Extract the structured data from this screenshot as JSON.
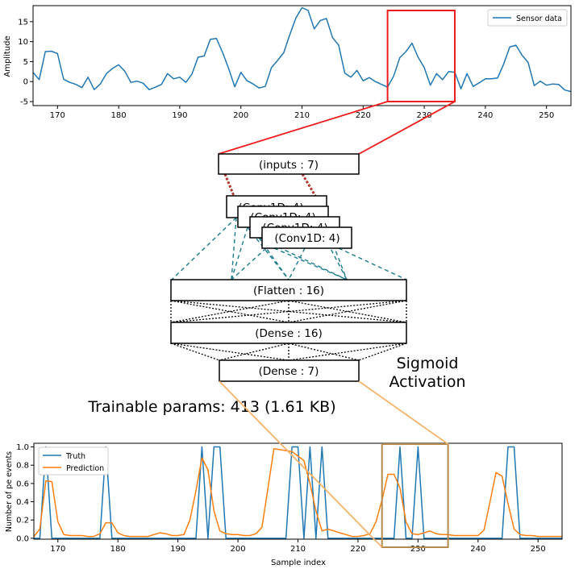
{
  "colors": {
    "sensor": "#1f77b4",
    "truth": "#1f77b4",
    "prediction": "#ff7f0e",
    "zoom_red": "#ee1c1c",
    "zoom_orange": "#f5b36b",
    "zoom_brown": "#b5894c",
    "conv_link": "#1a7a8c",
    "input_link": "#b03a2e"
  },
  "network": {
    "input": "(inputs : 7)",
    "conv": [
      "(Conv1D: 4)",
      "(Conv1D: 4)",
      "(Conv1D: 4)",
      "(Conv1D: 4)"
    ],
    "flatten": "(Flatten : 16)",
    "dense1": "(Dense : 16)",
    "dense2": "(Dense : 7)",
    "activation_line1": "Sigmoid",
    "activation_line2": "Activation",
    "params": "Trainable params: 413 (1.61 KB)"
  },
  "chart_data": [
    {
      "type": "line",
      "title": "",
      "xlabel": "",
      "ylabel": "Amplitude",
      "xlim": [
        166,
        254
      ],
      "ylim": [
        -6,
        19
      ],
      "xticks": [
        170,
        180,
        190,
        200,
        210,
        220,
        230,
        240,
        250
      ],
      "yticks": [
        -5,
        0,
        5,
        10,
        15
      ],
      "legend": "top-right",
      "zoom_window": [
        224,
        235
      ],
      "series": [
        {
          "name": "Sensor data",
          "x": [
            166,
            167,
            168,
            169,
            170,
            171,
            172,
            173,
            174,
            175,
            176,
            177,
            178,
            179,
            180,
            181,
            182,
            183,
            184,
            185,
            186,
            187,
            188,
            189,
            190,
            191,
            192,
            193,
            194,
            195,
            196,
            197,
            198,
            199,
            200,
            201,
            202,
            203,
            204,
            205,
            206,
            207,
            208,
            209,
            210,
            211,
            212,
            213,
            214,
            215,
            216,
            217,
            218,
            219,
            220,
            221,
            222,
            223,
            224,
            225,
            226,
            227,
            228,
            229,
            230,
            231,
            232,
            233,
            234,
            235,
            236,
            237,
            238,
            239,
            240,
            241,
            242,
            243,
            244,
            245,
            246,
            247,
            248,
            249,
            250,
            251,
            252,
            253,
            254
          ],
          "y": [
            2.3,
            0.5,
            7.5,
            7.6,
            7.0,
            0.6,
            -0.2,
            -0.7,
            -1.5,
            1.1,
            -2.0,
            -0.6,
            2.0,
            3.3,
            4.2,
            2.6,
            -0.2,
            0.1,
            -0.4,
            -2.0,
            -1.4,
            -0.7,
            2.0,
            0.7,
            1.1,
            -0.2,
            1.9,
            6.1,
            6.4,
            10.6,
            10.8,
            7.3,
            3.3,
            -1.3,
            2.3,
            0.2,
            -0.6,
            -1.6,
            -1.2,
            3.5,
            5.3,
            7.2,
            11.7,
            15.9,
            18.5,
            17.8,
            13.2,
            15.3,
            15.8,
            11.0,
            9.1,
            2.1,
            1.1,
            2.8,
            0.2,
            1.0,
            0.0,
            -0.7,
            -1.4,
            1.4,
            6.0,
            7.5,
            9.6,
            6.1,
            3.5,
            -0.9,
            2.0,
            0.5,
            2.5,
            2.3,
            -1.8,
            2.0,
            -1.2,
            -0.3,
            0.7,
            0.7,
            0.9,
            4.4,
            8.7,
            9.1,
            6.6,
            4.8,
            -1.0,
            0.1,
            -0.9,
            -0.6,
            -0.7,
            -2.1,
            -2.5
          ]
        }
      ]
    },
    {
      "type": "line",
      "title": "",
      "xlabel": "Sample index",
      "ylabel": "Number of pe events",
      "xlim": [
        166,
        254
      ],
      "ylim": [
        -0.01,
        1.04
      ],
      "xticks": [
        170,
        180,
        190,
        200,
        210,
        220,
        230,
        240,
        250
      ],
      "yticks": [
        0.0,
        0.2,
        0.4,
        0.6,
        0.8,
        1.0
      ],
      "legend": "top-left",
      "zoom_window": [
        224,
        235
      ],
      "series": [
        {
          "name": "Truth",
          "x": [
            166,
            167,
            168,
            169,
            170,
            171,
            172,
            173,
            174,
            175,
            176,
            177,
            178,
            179,
            180,
            181,
            182,
            183,
            184,
            185,
            186,
            187,
            188,
            189,
            190,
            191,
            192,
            193,
            194,
            195,
            196,
            197,
            198,
            199,
            200,
            201,
            202,
            203,
            204,
            205,
            206,
            207,
            208,
            209,
            210,
            211,
            212,
            213,
            214,
            215,
            216,
            217,
            218,
            219,
            220,
            221,
            222,
            223,
            224,
            225,
            226,
            227,
            228,
            229,
            230,
            231,
            232,
            233,
            234,
            235,
            236,
            237,
            238,
            239,
            240,
            241,
            242,
            243,
            244,
            245,
            246,
            247,
            248,
            249,
            250,
            251,
            252,
            253,
            254
          ],
          "y": [
            0,
            0,
            1,
            0,
            0,
            0,
            0,
            0,
            0,
            0,
            0,
            0,
            1,
            0,
            0,
            0,
            0,
            0,
            0,
            0,
            0,
            0,
            0,
            0,
            0,
            0,
            0,
            0,
            1,
            0,
            1,
            1,
            0,
            0,
            0,
            0,
            0,
            0,
            0,
            0,
            0,
            0,
            0,
            1,
            1,
            0,
            1,
            0,
            1,
            0,
            0,
            0,
            0,
            0,
            0,
            0,
            0,
            0,
            0,
            0,
            0,
            1,
            0,
            0,
            1,
            0,
            0,
            0,
            0,
            0,
            0,
            0,
            0,
            0,
            0,
            0,
            0,
            0,
            0,
            1,
            1,
            0,
            0,
            0,
            0,
            0,
            0,
            0,
            0
          ]
        },
        {
          "name": "Prediction",
          "x": [
            166,
            167,
            168,
            169,
            170,
            171,
            172,
            173,
            174,
            175,
            176,
            177,
            178,
            179,
            180,
            181,
            182,
            183,
            184,
            185,
            186,
            187,
            188,
            189,
            190,
            191,
            192,
            193,
            194,
            195,
            196,
            197,
            198,
            199,
            200,
            201,
            202,
            203,
            204,
            205,
            206,
            207,
            208,
            209,
            210,
            211,
            212,
            213,
            214,
            215,
            216,
            217,
            218,
            219,
            220,
            221,
            222,
            223,
            224,
            225,
            226,
            227,
            228,
            229,
            230,
            231,
            232,
            233,
            234,
            235,
            236,
            237,
            238,
            239,
            240,
            241,
            242,
            243,
            244,
            245,
            246,
            247,
            248,
            249,
            250,
            251,
            252,
            253,
            254
          ],
          "y": [
            0.02,
            0.1,
            0.63,
            0.62,
            0.18,
            0.04,
            0.03,
            0.03,
            0.03,
            0.02,
            0.02,
            0.05,
            0.17,
            0.17,
            0.06,
            0.03,
            0.02,
            0.02,
            0.02,
            0.02,
            0.04,
            0.06,
            0.05,
            0.03,
            0.03,
            0.04,
            0.2,
            0.52,
            0.88,
            0.75,
            0.3,
            0.08,
            0.05,
            0.04,
            0.04,
            0.03,
            0.03,
            0.05,
            0.12,
            0.55,
            0.98,
            0.97,
            0.96,
            0.95,
            0.9,
            0.85,
            0.6,
            0.3,
            0.08,
            0.1,
            0.08,
            0.06,
            0.04,
            0.02,
            0.02,
            0.03,
            0.05,
            0.18,
            0.42,
            0.7,
            0.7,
            0.55,
            0.18,
            0.05,
            0.04,
            0.06,
            0.08,
            0.05,
            0.04,
            0.04,
            0.03,
            0.03,
            0.03,
            0.03,
            0.03,
            0.09,
            0.4,
            0.72,
            0.68,
            0.38,
            0.1,
            0.04,
            0.03,
            0.03,
            0.02,
            0.02,
            0.02,
            0.02,
            0.02
          ]
        }
      ]
    }
  ]
}
